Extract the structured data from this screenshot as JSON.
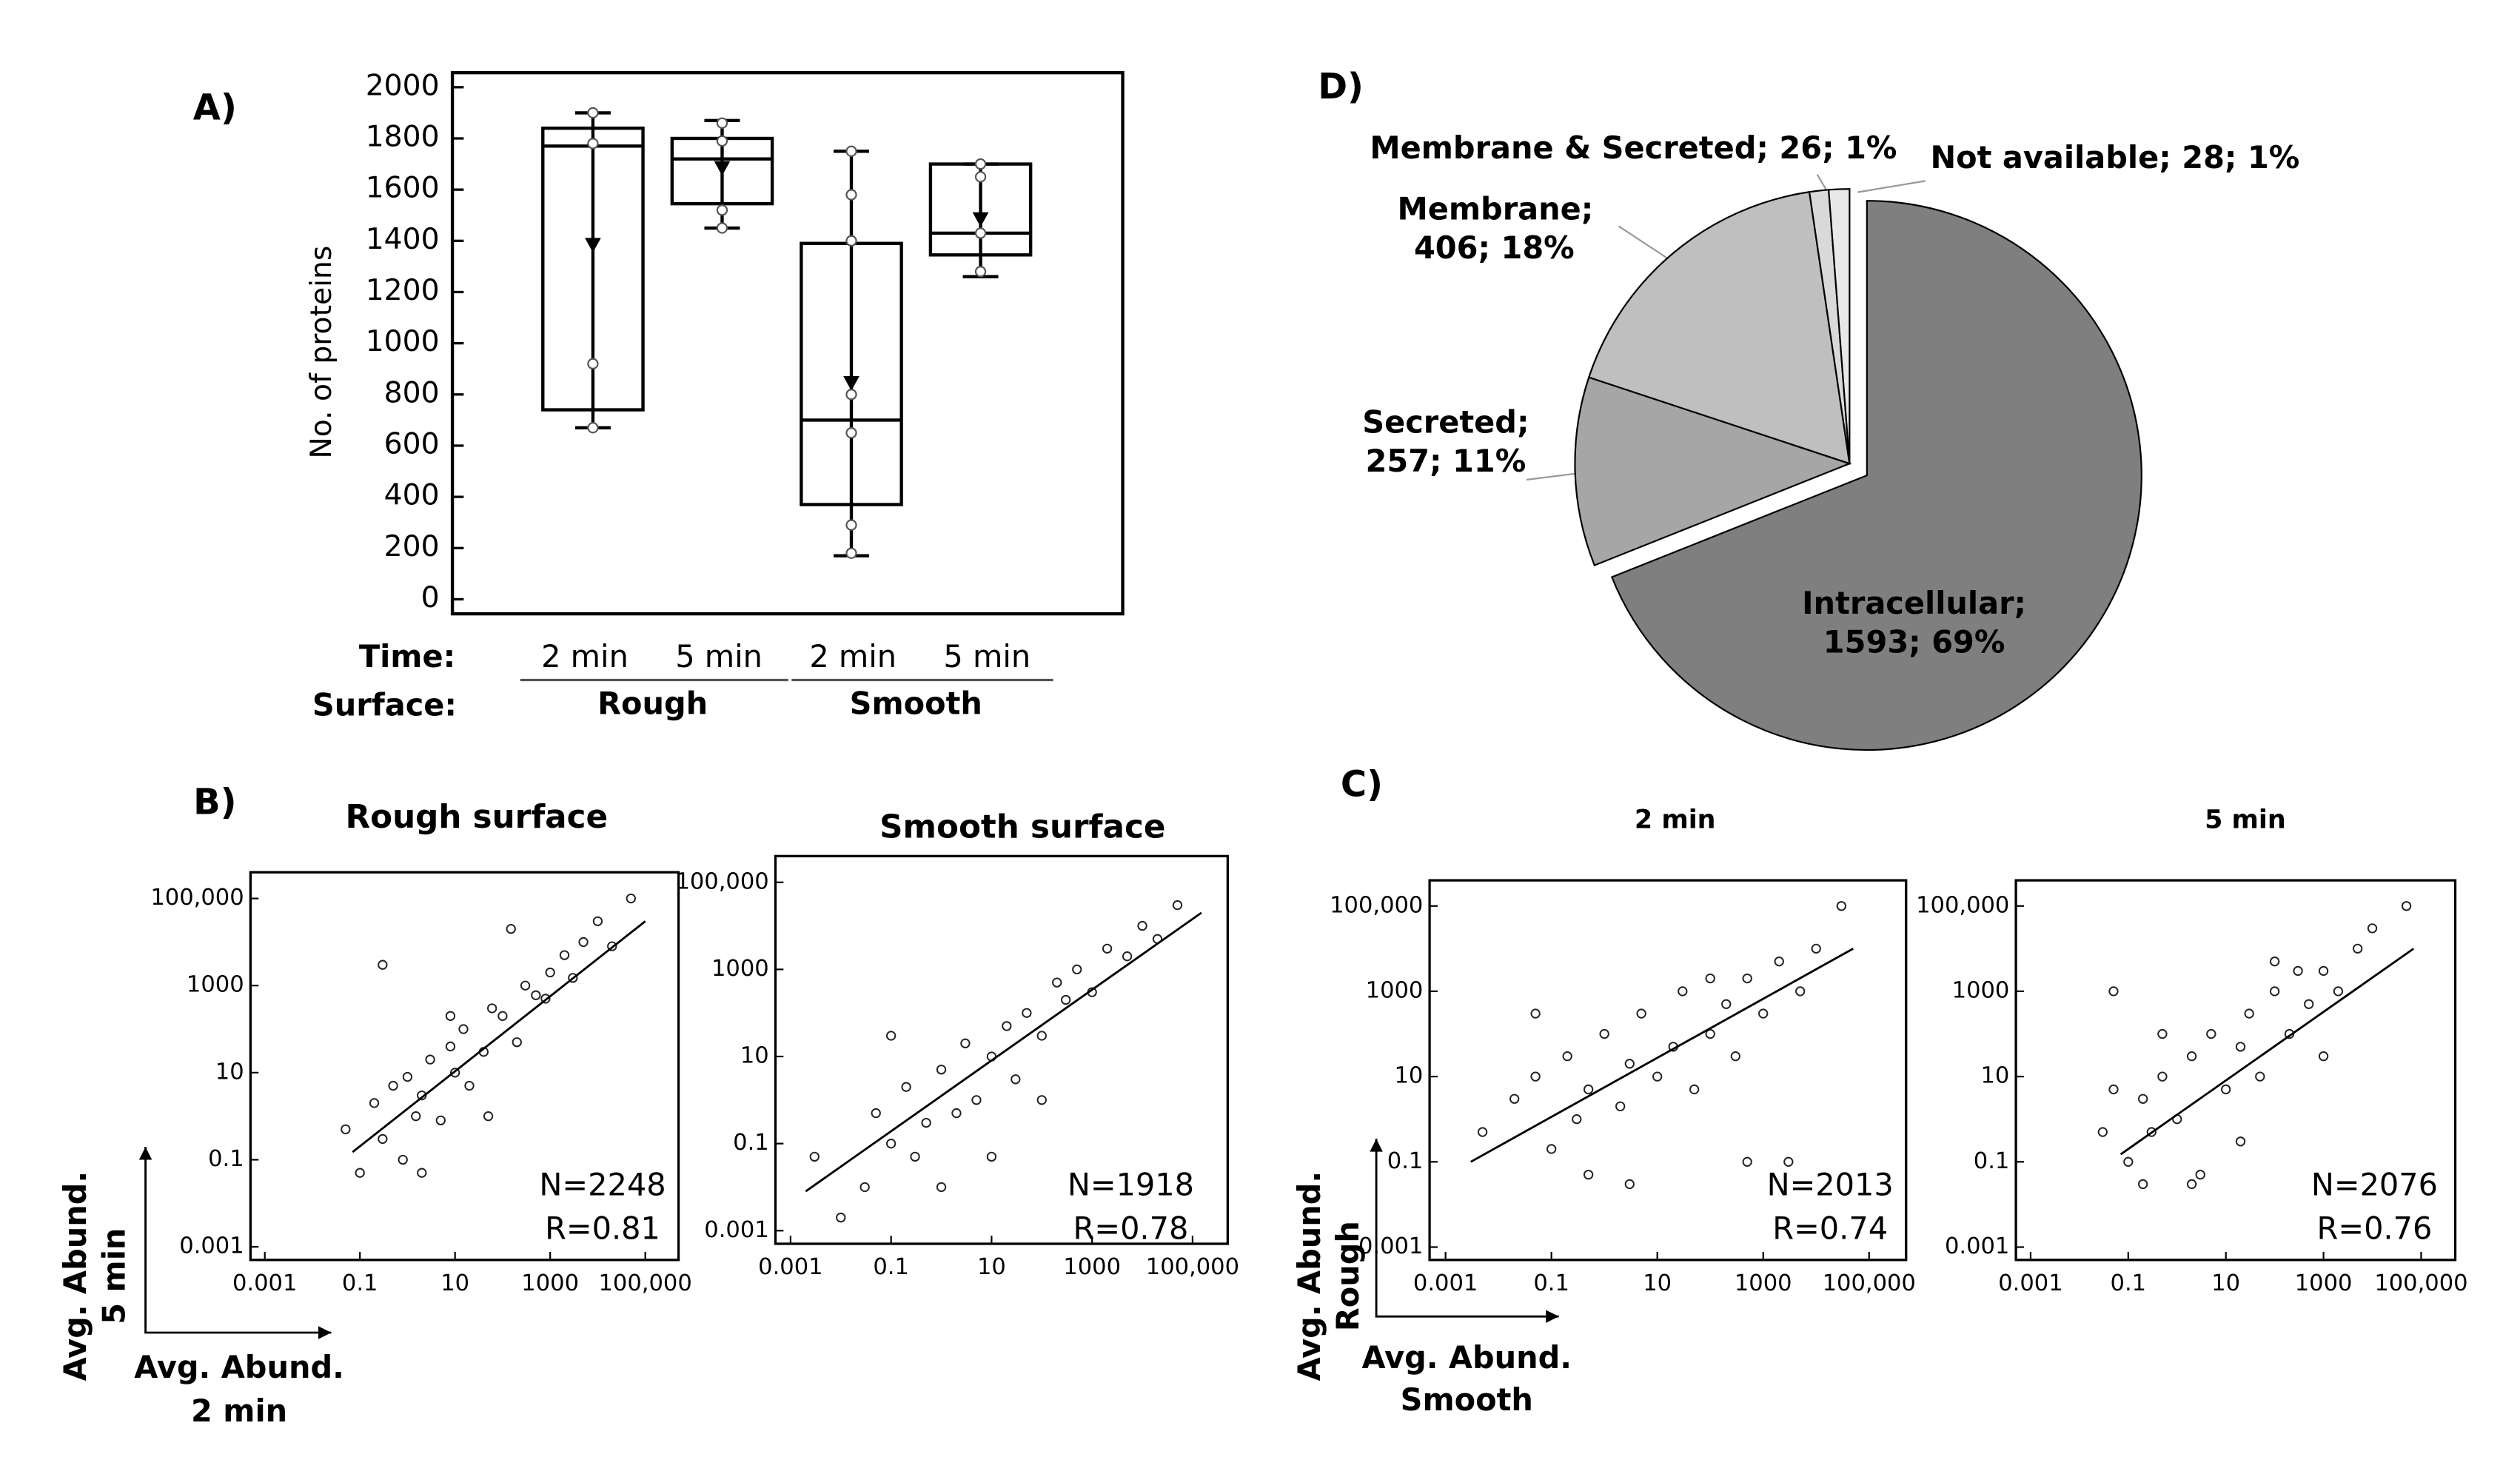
{
  "chart_data": [
    {
      "type": "box",
      "panel": "A)",
      "ylabel": "No. of proteins",
      "ylim": [
        0,
        2000
      ],
      "yticks": [
        0,
        200,
        400,
        600,
        800,
        1000,
        1200,
        1400,
        1600,
        1800,
        2000
      ],
      "category_label": "Time:",
      "categories": [
        "2 min",
        "5 min",
        "2 min",
        "5 min"
      ],
      "group_label": "Surface:",
      "groups": [
        "Rough",
        "Smooth"
      ],
      "color": "#000000",
      "boxes": [
        {
          "low": 670,
          "q1": 740,
          "median": 1770,
          "q3": 1840,
          "high": 1900,
          "mean": 1380,
          "points": [
            1900,
            1780,
            920,
            670
          ]
        },
        {
          "low": 1450,
          "q1": 1545,
          "median": 1720,
          "q3": 1800,
          "high": 1870,
          "mean": 1680,
          "points": [
            1860,
            1790,
            1520,
            1450
          ]
        },
        {
          "low": 170,
          "q1": 370,
          "median": 700,
          "q3": 1390,
          "high": 1750,
          "mean": 840,
          "points": [
            1750,
            1580,
            1400,
            800,
            650,
            290,
            180
          ]
        },
        {
          "low": 1260,
          "q1": 1345,
          "median": 1430,
          "q3": 1700,
          "high": 1700,
          "mean": 1480,
          "points": [
            1700,
            1650,
            1430,
            1280
          ]
        }
      ]
    },
    {
      "type": "pie",
      "panel": "D)",
      "values": [
        1593,
        257,
        406,
        26,
        28
      ],
      "value_labels": [
        "Intracellular; 1593; 69%",
        "Secreted; 257; 11%",
        "Membrane; 406; 18%",
        "Membrane & Secreted; 26; 1%",
        "Not available; 28; 1%"
      ],
      "colors": [
        "#7f7f7f",
        "#a6a6a6",
        "#bfbfbf",
        "#d9d9d9",
        "#e8e8e8"
      ],
      "exploded": 0
    },
    {
      "type": "scatter",
      "panel": "B)",
      "title": "Rough surface",
      "log": true,
      "xlabel": [
        "Avg. Abund.",
        "2 min"
      ],
      "ylabel": [
        "Avg. Abund.",
        "5 min"
      ],
      "annotations": [
        "N=2248",
        "R=0.81"
      ],
      "xlim": [
        0.0005,
        500000
      ],
      "ylim": [
        0.0005,
        400000
      ],
      "xticks": [
        0.001,
        0.1,
        10,
        1000,
        {
          "value": 100000,
          "label": "100,000"
        }
      ],
      "yticks": [
        0.001,
        0.1,
        10,
        1000,
        {
          "value": 100000,
          "label": "100,000"
        }
      ],
      "x": [
        0.05,
        0.1,
        0.2,
        0.3,
        0.5,
        0.8,
        1,
        1.5,
        2,
        3,
        5,
        8,
        10,
        15,
        20,
        40,
        60,
        100,
        200,
        300,
        500,
        1000,
        2000,
        3000,
        5000,
        10000,
        20000,
        50000,
        0.3,
        2,
        8,
        50,
        150,
        800
      ],
      "values": [
        0.5,
        0.05,
        2,
        0.3,
        5,
        0.1,
        8,
        1,
        3,
        20,
        0.8,
        40,
        10,
        100,
        5,
        30,
        300,
        200,
        50,
        1000,
        600,
        2000,
        5000,
        1500,
        10000,
        30000,
        8000,
        100000,
        3000,
        0.05,
        200,
        1,
        20000,
        500
      ],
      "fit": {
        "x": [
          0.07,
          100000
        ],
        "values": [
          0.15,
          30000
        ]
      }
    },
    {
      "type": "scatter",
      "title": "Smooth surface",
      "log": true,
      "annotations": [
        "N=1918",
        "R=0.78"
      ],
      "xlim": [
        0.0005,
        500000
      ],
      "ylim": [
        0.0005,
        400000
      ],
      "xticks": [
        0.001,
        0.1,
        10,
        1000,
        {
          "value": 100000,
          "label": "100,000"
        }
      ],
      "yticks": [
        0.001,
        0.1,
        10,
        1000,
        {
          "value": 100000,
          "label": "100,000"
        }
      ],
      "x": [
        0.003,
        0.01,
        0.03,
        0.05,
        0.1,
        0.2,
        0.3,
        0.5,
        1,
        2,
        3,
        5,
        10,
        20,
        30,
        50,
        100,
        200,
        300,
        500,
        1000,
        2000,
        5000,
        10000,
        20000,
        50000,
        0.1,
        1,
        10,
        100
      ],
      "values": [
        0.05,
        0.002,
        0.01,
        0.5,
        0.1,
        2,
        0.05,
        0.3,
        5,
        0.5,
        20,
        1,
        10,
        50,
        3,
        100,
        30,
        500,
        200,
        1000,
        300,
        3000,
        2000,
        10000,
        5000,
        30000,
        30,
        0.01,
        0.05,
        1
      ],
      "fit": {
        "x": [
          0.002,
          150000
        ],
        "values": [
          0.008,
          20000
        ]
      }
    },
    {
      "type": "scatter",
      "panel": "C)",
      "title": "2 min",
      "log": true,
      "xlabel": [
        "Avg. Abund.",
        "Smooth"
      ],
      "ylabel": [
        "Avg. Abund.",
        "Rough"
      ],
      "annotations": [
        "N=2013",
        "R=0.74"
      ],
      "xlim": [
        0.0005,
        500000
      ],
      "ylim": [
        0.0005,
        400000
      ],
      "xticks": [
        0.001,
        0.1,
        10,
        1000,
        {
          "value": 100000,
          "label": "100,000"
        }
      ],
      "yticks": [
        0.001,
        0.1,
        10,
        1000,
        {
          "value": 100000,
          "label": "100,000"
        }
      ],
      "x": [
        0.005,
        0.02,
        0.05,
        0.1,
        0.2,
        0.3,
        0.5,
        1,
        2,
        3,
        5,
        10,
        20,
        30,
        50,
        100,
        200,
        300,
        500,
        1000,
        2000,
        5000,
        10000,
        30000,
        0.05,
        0.5,
        3,
        100,
        500,
        3000
      ],
      "values": [
        0.5,
        3,
        10,
        0.2,
        30,
        1,
        5,
        100,
        2,
        20,
        300,
        10,
        50,
        1000,
        5,
        100,
        500,
        30,
        2000,
        300,
        5000,
        1000,
        10000,
        100000,
        300,
        0.05,
        0.03,
        2000,
        0.1,
        0.1
      ],
      "fit": {
        "x": [
          0.003,
          50000
        ],
        "values": [
          0.1,
          10000
        ]
      }
    },
    {
      "type": "scatter",
      "title": "5 min",
      "log": true,
      "annotations": [
        "N=2076",
        "R=0.76"
      ],
      "xlim": [
        0.0005,
        500000
      ],
      "ylim": [
        0.0005,
        400000
      ],
      "xticks": [
        0.001,
        0.1,
        10,
        1000,
        {
          "value": 100000,
          "label": "100,000"
        }
      ],
      "yticks": [
        0.001,
        0.1,
        10,
        1000,
        {
          "value": 100000,
          "label": "100,000"
        }
      ],
      "x": [
        0.05,
        0.1,
        0.2,
        0.3,
        0.5,
        1,
        2,
        3,
        5,
        10,
        20,
        30,
        50,
        100,
        200,
        300,
        500,
        1000,
        2000,
        5000,
        10000,
        50000,
        0.03,
        0.5,
        2,
        20,
        100,
        1000,
        0.05,
        0.2
      ],
      "values": [
        1000,
        0.1,
        3,
        0.5,
        10,
        1,
        30,
        0.05,
        100,
        5,
        50,
        300,
        10,
        1000,
        100,
        3000,
        500,
        3000,
        1000,
        10000,
        30000,
        100000,
        0.5,
        100,
        0.03,
        0.3,
        5000,
        30,
        5,
        0.03
      ],
      "fit": {
        "x": [
          0.07,
          70000
        ],
        "values": [
          0.15,
          10000
        ]
      }
    }
  ]
}
